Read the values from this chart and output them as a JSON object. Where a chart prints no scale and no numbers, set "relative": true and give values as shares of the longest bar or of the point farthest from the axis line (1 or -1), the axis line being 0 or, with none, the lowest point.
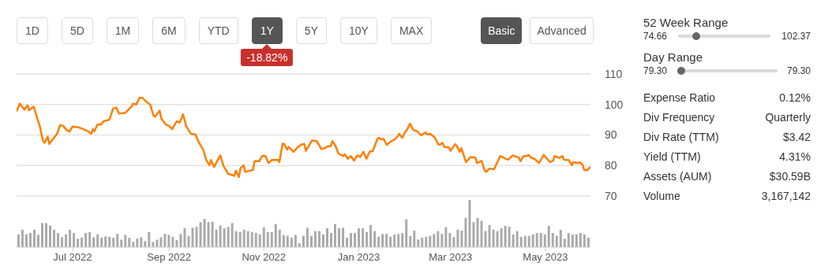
{
  "chart_data": [
    {
      "type": "line",
      "annotations": [
        "1D",
        "5D",
        "1M",
        "6M",
        "YTD",
        "1Y",
        "5Y",
        "10Y",
        "MAX",
        "Basic",
        "Advanced",
        "-18.82%"
      ],
      "x": [
        "2022-05-26",
        "2022-05-28",
        "2022-05-31",
        "2022-06-02",
        "2022-06-03",
        "2022-06-06",
        "2022-06-08",
        "2022-06-10",
        "2022-06-12",
        "2022-06-13",
        "2022-06-15",
        "2022-06-16",
        "2022-06-21",
        "2022-06-23",
        "2022-06-25",
        "2022-06-27",
        "2022-06-29",
        "2022-07-01",
        "2022-07-05",
        "2022-07-08",
        "2022-07-11",
        "2022-07-13",
        "2022-07-14",
        "2022-07-15",
        "2022-07-17",
        "2022-07-19",
        "2022-07-21",
        "2022-07-24",
        "2022-07-25",
        "2022-07-27",
        "2022-07-29",
        "2022-07-31",
        "2022-08-04",
        "2022-08-08",
        "2022-08-09",
        "2022-08-11",
        "2022-08-13",
        "2022-08-15",
        "2022-08-17",
        "2022-08-20",
        "2022-08-22",
        "2022-08-23",
        "2022-08-26",
        "2022-08-27",
        "2022-08-30",
        "2022-09-01",
        "2022-09-03",
        "2022-09-06",
        "2022-09-08",
        "2022-09-10",
        "2022-09-12",
        "2022-09-15",
        "2022-09-18",
        "2022-09-20",
        "2022-09-23",
        "2022-09-25",
        "2022-09-27",
        "2022-09-28",
        "2022-09-30",
        "2022-10-04",
        "2022-10-06",
        "2022-10-09",
        "2022-10-11",
        "2022-10-13",
        "2022-10-14",
        "2022-10-16",
        "2022-10-17",
        "2022-10-19",
        "2022-10-20",
        "2022-10-23",
        "2022-10-25",
        "2022-10-26",
        "2022-10-29",
        "2022-10-31",
        "2022-11-02",
        "2022-11-04",
        "2022-11-06",
        "2022-11-10",
        "2022-11-11",
        "2022-11-13",
        "2022-11-14",
        "2022-11-16",
        "2022-11-17",
        "2022-11-20",
        "2022-11-23",
        "2022-11-25",
        "2022-11-27",
        "2022-11-28",
        "2022-12-02",
        "2022-12-05",
        "2022-12-08",
        "2022-12-10",
        "2022-12-12",
        "2022-12-14",
        "2022-12-15",
        "2022-12-17",
        "2022-12-19",
        "2022-12-22",
        "2022-12-23",
        "2022-12-25",
        "2022-12-27",
        "2022-12-29",
        "2022-12-31",
        "2023-01-02",
        "2023-01-04",
        "2023-01-06",
        "2023-01-08",
        "2023-01-10",
        "2023-01-13",
        "2023-01-14",
        "2023-01-16",
        "2023-01-17",
        "2023-01-19",
        "2023-01-22",
        "2023-01-24",
        "2023-01-26",
        "2023-01-27",
        "2023-01-29",
        "2023-01-31",
        "2023-02-01",
        "2023-02-03",
        "2023-02-05",
        "2023-02-08",
        "2023-02-10",
        "2023-02-13",
        "2023-02-14",
        "2023-02-16",
        "2023-02-19",
        "2023-02-21",
        "2023-02-22",
        "2023-02-24",
        "2023-02-25",
        "2023-02-28",
        "2023-03-01",
        "2023-03-04",
        "2023-03-05",
        "2023-03-07",
        "2023-03-08",
        "2023-03-11",
        "2023-03-14",
        "2023-03-17",
        "2023-03-18",
        "2023-03-21",
        "2023-03-23",
        "2023-03-24",
        "2023-03-26",
        "2023-03-29",
        "2023-03-31",
        "2023-04-02",
        "2023-04-04",
        "2023-04-07",
        "2023-04-10",
        "2023-04-14",
        "2023-04-15",
        "2023-04-17",
        "2023-04-19",
        "2023-04-20",
        "2023-04-22",
        "2023-04-24",
        "2023-04-27",
        "2023-04-30",
        "2023-05-01",
        "2023-05-04",
        "2023-05-06",
        "2023-05-07",
        "2023-05-10",
        "2023-05-12",
        "2023-05-13",
        "2023-05-16",
        "2023-05-18",
        "2023-05-19",
        "2023-05-22",
        "2023-05-23",
        "2023-05-25",
        "2023-05-26",
        "2023-05-28",
        "2023-05-30"
      ],
      "values": [
        97.7,
        100.3,
        98.3,
        99.7,
        98.1,
        99.3,
        96.0,
        92.8,
        88.1,
        87.4,
        89.5,
        87.1,
        90.4,
        93.2,
        93.0,
        91.7,
        91.1,
        92.8,
        92.5,
        91.9,
        91.2,
        90.4,
        91.9,
        91.2,
        93.4,
        93.4,
        94.5,
        94.9,
        95.4,
        98.6,
        99.0,
        97.0,
        97.3,
        99.4,
        100.3,
        100.0,
        102.2,
        102.2,
        101.1,
        99.9,
        96.4,
        96.0,
        98.0,
        95.4,
        93.4,
        93.0,
        91.9,
        94.5,
        94.1,
        96.8,
        93.0,
        90.4,
        90.2,
        87.8,
        85.2,
        81.8,
        80.1,
        81.8,
        79.5,
        83.3,
        79.9,
        77.3,
        77.0,
        76.6,
        78.3,
        76.2,
        79.2,
        80.1,
        77.9,
        78.3,
        78.5,
        81.4,
        81.4,
        83.2,
        83.1,
        80.8,
        81.8,
        81.9,
        81.1,
        87.1,
        87.1,
        85.2,
        86.1,
        84.5,
        86.1,
        86.8,
        87.1,
        84.8,
        88.2,
        88.0,
        85.4,
        85.6,
        86.3,
        86.3,
        88.0,
        86.5,
        83.9,
        83.1,
        83.7,
        82.2,
        83.1,
        81.6,
        83.3,
        82.8,
        84.5,
        82.2,
        84.5,
        84.7,
        88.7,
        89.1,
        88.5,
        88.7,
        86.8,
        88.0,
        88.5,
        89.5,
        90.4,
        89.1,
        91.1,
        91.7,
        93.7,
        91.7,
        91.1,
        89.9,
        90.8,
        90.2,
        90.4,
        89.1,
        87.0,
        86.8,
        87.4,
        86.1,
        85.9,
        84.8,
        87.0,
        86.5,
        84.5,
        85.7,
        81.1,
        82.8,
        82.6,
        80.8,
        81.5,
        78.3,
        77.9,
        79.0,
        78.8,
        80.9,
        83.1,
        82.6,
        81.9,
        83.3,
        82.6,
        81.4,
        83.1,
        83.1,
        83.5,
        82.5,
        82.2,
        80.8,
        83.5,
        82.8,
        81.1,
        81.6,
        83.1,
        82.5,
        83.1,
        81.9,
        81.8,
        80.1,
        81.1,
        80.8,
        81.1,
        80.2,
        78.5,
        78.5,
        79.6
      ],
      "color": "#ff7f00",
      "xlim": [
        "2022-05-26",
        "2023-05-30"
      ],
      "xticks": [
        {
          "value": "2022-07-01",
          "label": "Jul 2022"
        },
        {
          "value": "2022-09-01",
          "label": "Sep 2022"
        },
        {
          "value": "2022-11-01",
          "label": "Nov 2022"
        },
        {
          "value": "2023-01-01",
          "label": "Jan 2023"
        },
        {
          "value": "2023-03-01",
          "label": "Mar 2023"
        },
        {
          "value": "2023-05-01",
          "label": "May 2023"
        }
      ],
      "ylim": [
        70,
        110
      ],
      "yticks": [
        70,
        80,
        90,
        100,
        110
      ],
      "grid": "y",
      "marker": "none"
    },
    {
      "type": "bar",
      "relative": true,
      "color": "#aaaaaa",
      "categories": [
        null,
        null,
        null,
        null,
        null,
        null,
        null,
        null,
        null,
        null,
        null,
        null,
        null,
        null,
        null,
        null,
        null,
        null,
        null,
        null,
        null,
        null,
        null,
        null,
        null,
        null,
        null,
        null,
        null,
        null,
        null,
        null,
        null,
        null,
        null,
        null,
        null,
        null,
        null,
        null,
        null,
        null,
        null,
        null,
        null,
        null,
        null,
        null,
        null,
        null,
        null,
        null,
        null,
        null,
        null,
        null,
        null,
        null,
        null,
        null,
        null,
        null,
        null,
        null,
        null,
        null,
        null,
        null,
        null,
        null,
        null,
        null,
        null,
        null,
        null,
        null,
        null,
        null,
        null,
        null,
        null,
        null,
        null,
        null,
        null,
        null,
        null,
        null,
        null,
        null,
        null,
        null,
        null,
        null,
        null,
        null,
        null,
        null,
        null,
        null,
        null,
        null,
        null,
        null,
        null,
        null,
        null,
        null,
        null,
        null,
        null,
        null,
        null,
        null,
        null,
        null,
        null,
        null,
        null,
        null,
        null,
        null,
        null,
        null,
        null,
        null,
        null,
        null,
        null,
        null,
        null,
        null,
        null,
        null,
        null,
        null,
        null,
        null,
        null,
        null,
        null,
        null,
        null,
        null,
        null
      ],
      "values": [
        0.27,
        0.37,
        0.27,
        0.3,
        0.37,
        0.26,
        0.51,
        0.51,
        0.46,
        0.37,
        0.3,
        0.21,
        0.27,
        0.37,
        0.3,
        0.18,
        0.2,
        0.3,
        0.32,
        0.21,
        0.27,
        0.2,
        0.23,
        0.22,
        0.2,
        0.28,
        0.16,
        0.26,
        0.2,
        0.11,
        0.18,
        0.21,
        0.13,
        0.32,
        0.11,
        0.16,
        0.21,
        0.28,
        0.26,
        0.22,
        0.15,
        0.28,
        0.4,
        0.24,
        0.41,
        0.43,
        0.53,
        0.6,
        0.53,
        0.54,
        0.37,
        0.46,
        0.4,
        0.43,
        0.51,
        0.34,
        0.32,
        0.37,
        0.34,
        0.32,
        0.3,
        0.27,
        0.42,
        0.32,
        0.32,
        0.49,
        0.37,
        0.26,
        0.24,
        0.2,
        0.26,
        0.08,
        0.24,
        0.41,
        0.24,
        0.34,
        0.34,
        0.27,
        0.4,
        0.3,
        0.49,
        0.4,
        0.41,
        0.2,
        0.3,
        0.3,
        0.4,
        0.4,
        0.32,
        0.47,
        0.34,
        0.22,
        0.28,
        0.28,
        0.22,
        0.27,
        0.28,
        0.3,
        0.59,
        0.24,
        0.35,
        0.16,
        0.2,
        0.22,
        0.24,
        0.28,
        0.34,
        0.28,
        0.42,
        0.3,
        0.21,
        0.37,
        0.35,
        0.62,
        1,
        0.53,
        0.62,
        0.56,
        0.34,
        0.47,
        0.37,
        0.34,
        0.4,
        0.45,
        0.43,
        0.27,
        0.34,
        0.22,
        0.24,
        0.24,
        0.27,
        0.3,
        0.3,
        0.27,
        0.45,
        0.3,
        0.24,
        0.37,
        0.18,
        0.3,
        0.27,
        0.27,
        0.3,
        0.27,
        0.2
      ]
    },
    {
      "type": "other",
      "annotations": [
        "52 Week Range",
        "74.66",
        "102.37",
        "Day Range",
        "79.30",
        "79.30",
        "Expense Ratio",
        "0.12%",
        "Div Frequency",
        "Quarterly",
        "Div Rate (TTM)",
        "$3.42",
        "Yield (TTM)",
        "4.31%",
        "Assets (AUM)",
        "$30.59B",
        "Volume",
        "3,167,142"
      ]
    }
  ]
}
